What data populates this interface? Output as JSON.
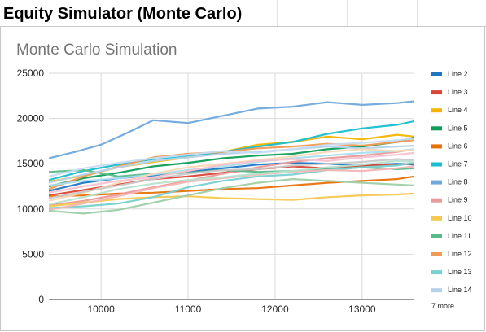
{
  "sheet": {
    "title": "Equity Simulator (Monte Carlo)"
  },
  "chart_data": {
    "type": "line",
    "title": "Monte Carlo Simulation",
    "xlabel": "",
    "ylabel": "",
    "xlim": [
      9400,
      13600
    ],
    "ylim": [
      0,
      25000
    ],
    "x_ticks": [
      10000,
      11000,
      12000,
      13000
    ],
    "y_ticks": [
      0,
      5000,
      10000,
      15000,
      20000,
      25000
    ],
    "grid": true,
    "legend": {
      "position": "right",
      "more_label": "7 more"
    },
    "series": [
      {
        "name": "Line 2",
        "color": "#1f77c4",
        "x": [
          9400,
          9800,
          10200,
          10600,
          11000,
          11400,
          11800,
          12200,
          12600,
          13000,
          13400,
          13600
        ],
        "y": [
          12000,
          12900,
          13400,
          13700,
          14100,
          14500,
          14900,
          15100,
          15000,
          14800,
          15000,
          14900
        ]
      },
      {
        "name": "Line 3",
        "color": "#db4437",
        "x": [
          9400,
          9800,
          10200,
          10600,
          11000,
          11400,
          11800,
          12200,
          12600,
          13000,
          13400,
          13600
        ],
        "y": [
          11500,
          12100,
          12700,
          13300,
          13600,
          14000,
          14400,
          14700,
          14500,
          14800,
          14900,
          15000
        ]
      },
      {
        "name": "Line 4",
        "color": "#f4b400",
        "x": [
          9400,
          9800,
          10200,
          10600,
          11000,
          11400,
          11800,
          12200,
          12600,
          13000,
          13400,
          13600
        ],
        "y": [
          13000,
          13700,
          14600,
          15200,
          15700,
          16300,
          17100,
          17400,
          18000,
          17700,
          18200,
          18000
        ]
      },
      {
        "name": "Line 5",
        "color": "#0f9d58",
        "x": [
          9400,
          9800,
          10200,
          10600,
          11000,
          11400,
          11800,
          12200,
          12600,
          13000,
          13400,
          13600
        ],
        "y": [
          12500,
          13400,
          14000,
          14700,
          15100,
          15600,
          15900,
          16100,
          16600,
          16900,
          17400,
          17900
        ]
      },
      {
        "name": "Line 6",
        "color": "#e8710a",
        "x": [
          9400,
          9800,
          10200,
          10600,
          11000,
          11400,
          11800,
          12200,
          12600,
          13000,
          13400,
          13600
        ],
        "y": [
          11400,
          11500,
          11700,
          11800,
          12000,
          12200,
          12300,
          12600,
          12900,
          13100,
          13300,
          13600
        ]
      },
      {
        "name": "Line 7",
        "color": "#17becf",
        "x": [
          9400,
          9800,
          10200,
          10600,
          11000,
          11400,
          11800,
          12200,
          12600,
          13000,
          13400,
          13600
        ],
        "y": [
          13200,
          14200,
          14900,
          15500,
          15900,
          16300,
          16900,
          17400,
          18300,
          18900,
          19300,
          19700
        ]
      },
      {
        "name": "Line 8",
        "color": "#6fa8dc",
        "x": [
          9400,
          9700,
          10000,
          10300,
          10600,
          11000,
          11400,
          11800,
          12200,
          12600,
          13000,
          13400,
          13600
        ],
        "y": [
          15600,
          16300,
          17100,
          18400,
          19800,
          19500,
          20300,
          21100,
          21300,
          21800,
          21500,
          21700,
          21900
        ]
      },
      {
        "name": "Line 9",
        "color": "#ea9999",
        "x": [
          9400,
          9800,
          10200,
          10600,
          11000,
          11400,
          11800,
          12200,
          12600,
          13000,
          13400,
          13600
        ],
        "y": [
          10400,
          10900,
          11600,
          12400,
          13100,
          13900,
          14600,
          15200,
          15600,
          15900,
          16300,
          16600
        ]
      },
      {
        "name": "Line 10",
        "color": "#f6c851",
        "x": [
          9400,
          9800,
          10200,
          10600,
          11000,
          11400,
          11800,
          12200,
          12600,
          13000,
          13400,
          13600
        ],
        "y": [
          10300,
          10700,
          11100,
          11300,
          11400,
          11200,
          11100,
          11000,
          11300,
          11500,
          11600,
          11700
        ]
      },
      {
        "name": "Line 11",
        "color": "#57bb8a",
        "x": [
          9400,
          9800,
          10200,
          10600,
          11000,
          11400,
          11800,
          12200,
          12600,
          13000,
          13400,
          13600
        ],
        "y": [
          14100,
          14300,
          13600,
          13900,
          14000,
          14300,
          14100,
          14200,
          14400,
          14600,
          14400,
          14500
        ]
      },
      {
        "name": "Line 12",
        "color": "#f19a53",
        "x": [
          9400,
          9800,
          10200,
          10600,
          11000,
          11400,
          11800,
          12200,
          12600,
          13000,
          13400,
          13600
        ],
        "y": [
          12200,
          13600,
          14700,
          15700,
          16100,
          16300,
          16700,
          16900,
          17200,
          17000,
          17400,
          17600
        ]
      },
      {
        "name": "Line 13",
        "color": "#78d0d0",
        "x": [
          9400,
          9800,
          10200,
          10600,
          11000,
          11400,
          11800,
          12200,
          12600,
          13000,
          13400,
          13600
        ],
        "y": [
          10100,
          10300,
          10600,
          11300,
          12400,
          13100,
          13600,
          13800,
          14300,
          14600,
          14800,
          15100
        ]
      },
      {
        "name": "Line 14",
        "color": "#b4d2ec",
        "x": [
          9400,
          9800,
          10200,
          10600,
          11000,
          11400,
          11800,
          12200,
          12600,
          13000,
          13400,
          13600
        ],
        "y": [
          12900,
          13800,
          14600,
          15300,
          15700,
          16100,
          16300,
          16600,
          16900,
          16700,
          16900,
          17000
        ]
      },
      {
        "color": "#f4b6b6",
        "x": [
          9400,
          9800,
          10200,
          10600,
          11000,
          11400,
          11800,
          12200,
          12600,
          13000,
          13400,
          13600
        ],
        "y": [
          9900,
          10600,
          11400,
          12300,
          13000,
          13400,
          13800,
          14100,
          14300,
          14200,
          14500,
          14700
        ]
      },
      {
        "color": "#9ecfa8",
        "x": [
          9400,
          9800,
          10200,
          10600,
          11000,
          11400,
          11800,
          12200,
          12600,
          13000,
          13400,
          13600
        ],
        "y": [
          9800,
          9500,
          9900,
          10700,
          11500,
          12300,
          12900,
          13300,
          13100,
          12900,
          12700,
          12600
        ]
      },
      {
        "color": "#a9def0",
        "x": [
          9400,
          9800,
          10200,
          10600,
          11000,
          11400,
          11800,
          12200,
          12600,
          13000,
          13400,
          13600
        ],
        "y": [
          12600,
          13100,
          13400,
          13800,
          14300,
          14700,
          15200,
          15600,
          15900,
          16200,
          16400,
          16600
        ]
      },
      {
        "color": "#f9d9b6",
        "x": [
          9400,
          9800,
          10200,
          10600,
          11000,
          11400,
          11800,
          12200,
          12600,
          13000,
          13400,
          13600
        ],
        "y": [
          10900,
          11800,
          12900,
          13900,
          14600,
          15000,
          15400,
          15800,
          16300,
          16600,
          16400,
          16500
        ]
      },
      {
        "color": "#c9c9c9",
        "x": [
          9400,
          9800,
          10200,
          10600,
          11000,
          11400,
          11800,
          12200,
          12600,
          13000,
          13400,
          13600
        ],
        "y": [
          11200,
          11900,
          12600,
          13300,
          13900,
          14300,
          14400,
          14800,
          15000,
          15200,
          15500,
          15400
        ]
      },
      {
        "color": "#b7e1cd",
        "x": [
          9400,
          9800,
          10200,
          10600,
          11000,
          11400,
          11800,
          12200,
          12600,
          13000,
          13400,
          13600
        ],
        "y": [
          10500,
          11300,
          12200,
          12800,
          13200,
          13500,
          13900,
          14200,
          14600,
          14900,
          15300,
          15200
        ]
      },
      {
        "color": "#f7c2d0",
        "x": [
          9400,
          9800,
          10200,
          10600,
          11000,
          11400,
          11800,
          12200,
          12600,
          13000,
          13400,
          13600
        ],
        "y": [
          11800,
          12500,
          13100,
          13500,
          14200,
          14900,
          15300,
          15500,
          15300,
          15700,
          16000,
          16200
        ]
      },
      {
        "color": "#c6dcf2",
        "x": [
          9400,
          9800,
          10200,
          10600,
          11000,
          11400,
          11800,
          12200,
          12600,
          13000,
          13400,
          13600
        ],
        "y": [
          13600,
          14500,
          15100,
          15600,
          16000,
          16400,
          16200,
          16600,
          17100,
          17300,
          17600,
          17800
        ]
      }
    ]
  }
}
